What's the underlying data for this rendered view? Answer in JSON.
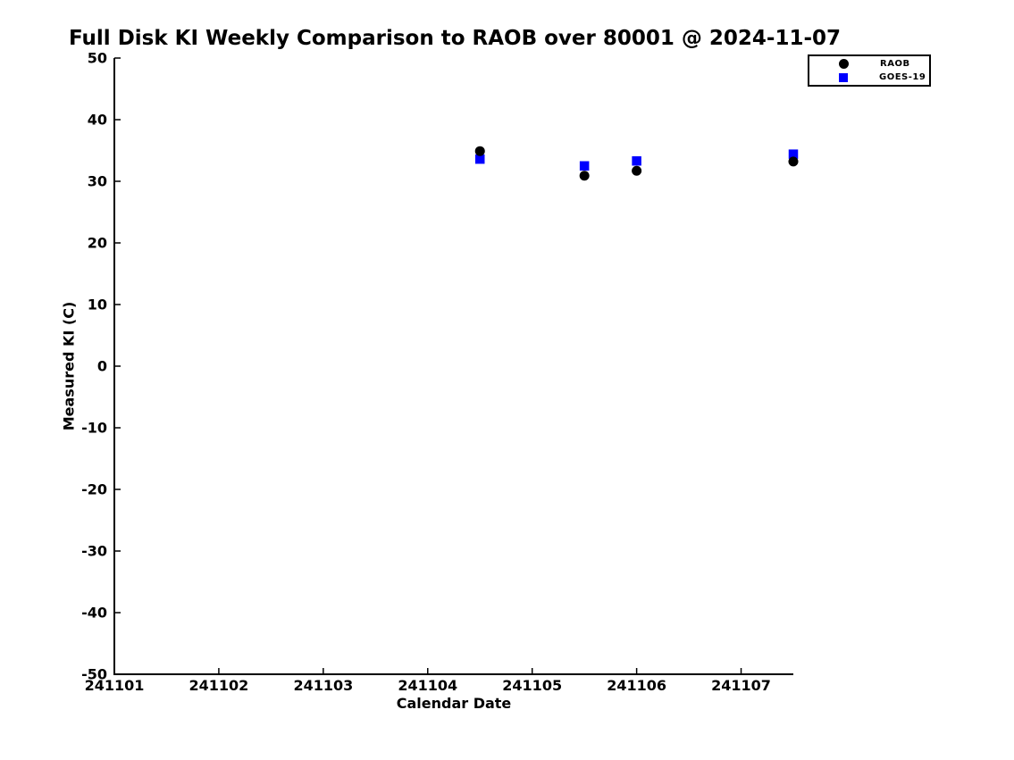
{
  "title": "Full Disk KI Weekly Comparison to RAOB over 80001 @ 2024-11-07",
  "axes": {
    "xlabel": "Calendar Date",
    "ylabel": "Measured KI (C)"
  },
  "legend": {
    "items": [
      {
        "label": "RAOB",
        "marker": "circle-icon",
        "color": "#000000"
      },
      {
        "label": "GOES-19",
        "marker": "square-icon",
        "color": "#0000ff"
      }
    ]
  },
  "chart_data": {
    "type": "scatter",
    "title": "Full Disk KI Weekly Comparison to RAOB over 80001 @ 2024-11-07",
    "xlabel": "Calendar Date",
    "ylabel": "Measured KI (C)",
    "xlim": [
      241101,
      241107.5
    ],
    "ylim": [
      -50,
      50
    ],
    "x_ticks": [
      241101,
      241102,
      241103,
      241104,
      241105,
      241106,
      241107
    ],
    "y_ticks": [
      50,
      40,
      30,
      20,
      10,
      0,
      -10,
      -20,
      -30,
      -40,
      -50
    ],
    "grid": false,
    "background": "#ffffff",
    "legend_position": "top-right",
    "series": [
      {
        "name": "RAOB",
        "marker": "circle",
        "color": "#000000",
        "points": [
          [
            241104.5,
            34.9
          ],
          [
            241105.5,
            30.9
          ],
          [
            241106.0,
            31.7
          ],
          [
            241107.5,
            33.2
          ]
        ]
      },
      {
        "name": "GOES-19",
        "marker": "square",
        "color": "#0000ff",
        "points": [
          [
            241104.5,
            33.6
          ],
          [
            241105.5,
            32.5
          ],
          [
            241106.0,
            33.3
          ],
          [
            241107.5,
            34.4
          ]
        ]
      }
    ]
  }
}
